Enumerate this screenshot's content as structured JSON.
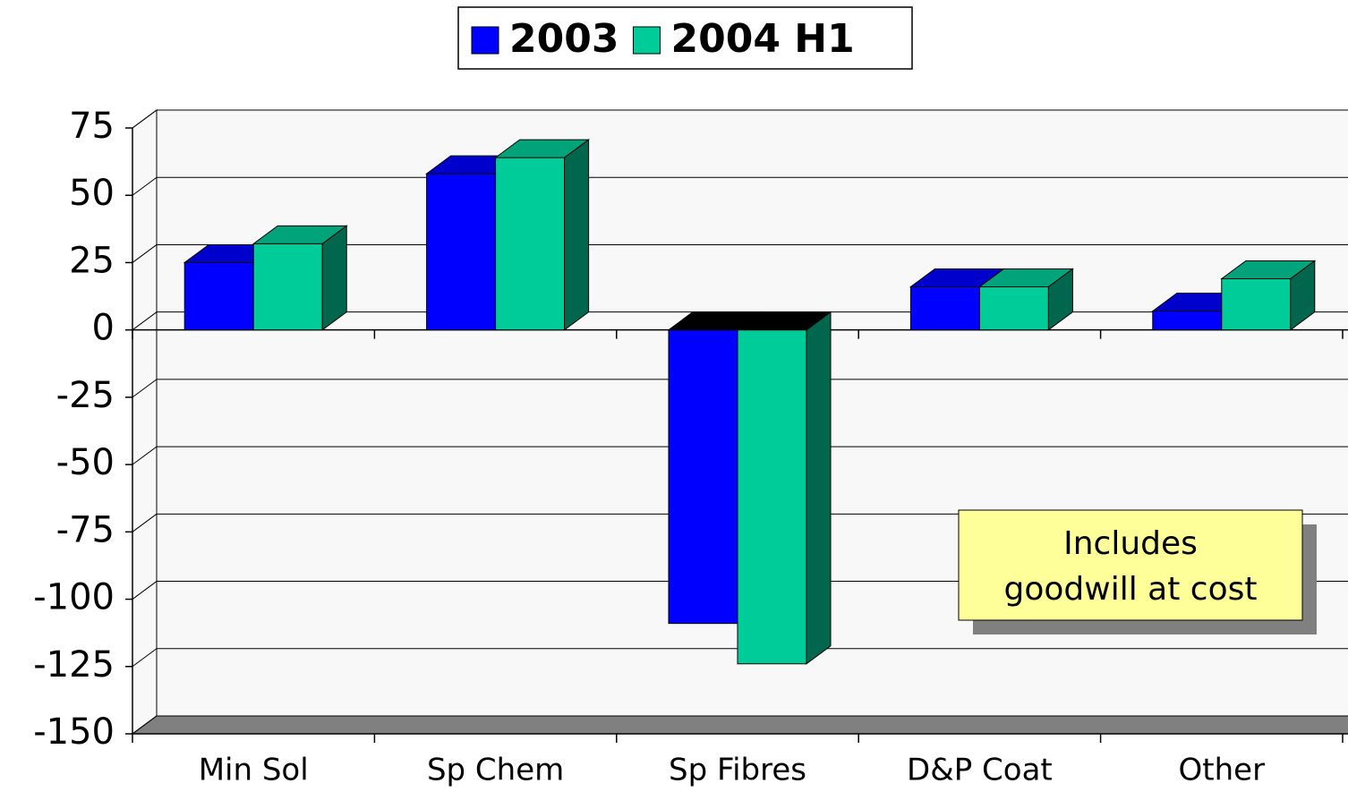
{
  "chart_data": {
    "type": "bar3d",
    "categories": [
      "Min Sol",
      "Sp Chem",
      "Sp Fibres",
      "D&P Coat",
      "Other"
    ],
    "series": [
      {
        "name": "2003",
        "color": "#0000ff",
        "values": [
          25,
          58,
          -109,
          16,
          7
        ]
      },
      {
        "name": "2004 H1",
        "color": "#00cc99",
        "values": [
          32,
          64,
          -124,
          16,
          19
        ]
      }
    ],
    "ylim": [
      -150,
      75
    ],
    "yticks": [
      -150,
      -125,
      -100,
      -75,
      -50,
      -25,
      0,
      25,
      50,
      75
    ],
    "grid": true,
    "legend": "top",
    "annotation": [
      "Includes",
      "goodwill at cost"
    ]
  }
}
